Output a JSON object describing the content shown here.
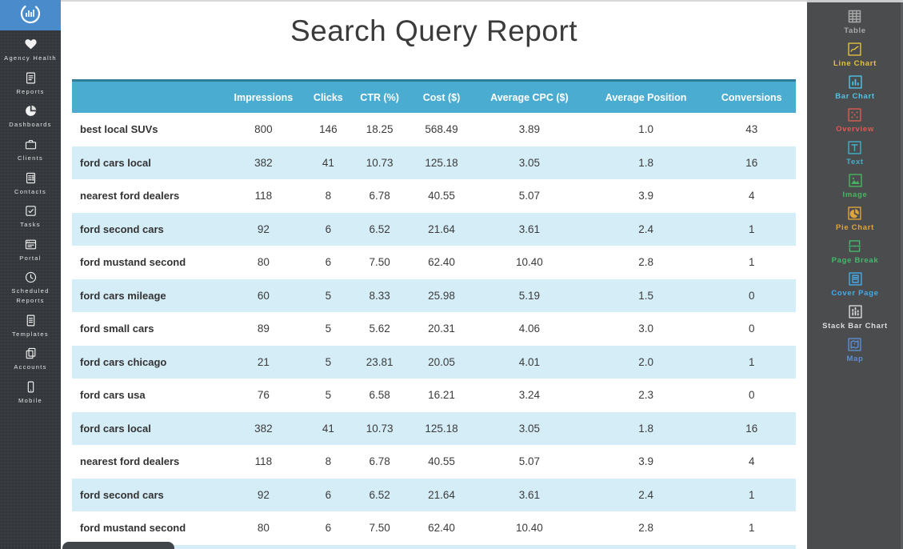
{
  "colors": {
    "header_bg": "#4AACD0",
    "header_border": "#2E8099",
    "row_alt_bg": "#D5EDF7",
    "logo_bg": "#4A8CCB",
    "left_sidebar_bg": "#34383C",
    "right_sidebar_bg": "#4A4C4E"
  },
  "left_sidebar": {
    "items": [
      {
        "icon": "heart-icon",
        "label": "Agency Health"
      },
      {
        "icon": "reports-icon",
        "label": "Reports"
      },
      {
        "icon": "dashboards-icon",
        "label": "Dashboards"
      },
      {
        "icon": "clients-icon",
        "label": "Clients"
      },
      {
        "icon": "contacts-icon",
        "label": "Contacts"
      },
      {
        "icon": "tasks-icon",
        "label": "Tasks"
      },
      {
        "icon": "portal-icon",
        "label": "Portal"
      },
      {
        "icon": "clock-icon",
        "label": "Scheduled Reports"
      },
      {
        "icon": "templates-icon",
        "label": "Templates"
      },
      {
        "icon": "accounts-icon",
        "label": "Accounts"
      },
      {
        "icon": "mobile-icon",
        "label": "Mobile"
      }
    ]
  },
  "right_sidebar": {
    "items": [
      {
        "icon": "table-icon",
        "label": "Table",
        "color": "#ABABAB"
      },
      {
        "icon": "line-chart-icon",
        "label": "Line Chart",
        "color": "#E3C33C"
      },
      {
        "icon": "bar-chart-icon",
        "label": "Bar Chart",
        "color": "#4FC4EA"
      },
      {
        "icon": "overview-icon",
        "label": "Overview",
        "color": "#E25A50"
      },
      {
        "icon": "text-icon",
        "label": "Text",
        "color": "#41B3C9"
      },
      {
        "icon": "image-icon",
        "label": "Image",
        "color": "#47B75F"
      },
      {
        "icon": "pie-chart-icon",
        "label": "Pie Chart",
        "color": "#DFA53C"
      },
      {
        "icon": "page-break-icon",
        "label": "Page Break",
        "color": "#43BA6C"
      },
      {
        "icon": "cover-page-icon",
        "label": "Cover Page",
        "color": "#44ACEA"
      },
      {
        "icon": "stack-bar-chart-icon",
        "label": "Stack Bar Chart",
        "color": "#DCDCDC"
      },
      {
        "icon": "map-icon",
        "label": "Map",
        "color": "#5C8FD6"
      }
    ]
  },
  "report": {
    "title": "Search Query Report",
    "table": {
      "columns": [
        "",
        "Impressions",
        "Clicks",
        "CTR (%)",
        "Cost ($)",
        "Average CPC ($)",
        "Average Position",
        "Conversions"
      ],
      "rows": [
        [
          "best local SUVs",
          "800",
          "146",
          "18.25",
          "568.49",
          "3.89",
          "1.0",
          "43"
        ],
        [
          "ford cars local",
          "382",
          "41",
          "10.73",
          "125.18",
          "3.05",
          "1.8",
          "16"
        ],
        [
          "nearest ford dealers",
          "118",
          "8",
          "6.78",
          "40.55",
          "5.07",
          "3.9",
          "4"
        ],
        [
          "ford second cars",
          "92",
          "6",
          "6.52",
          "21.64",
          "3.61",
          "2.4",
          "1"
        ],
        [
          "ford mustand second",
          "80",
          "6",
          "7.50",
          "62.40",
          "10.40",
          "2.8",
          "1"
        ],
        [
          "ford cars mileage",
          "60",
          "5",
          "8.33",
          "25.98",
          "5.19",
          "1.5",
          "0"
        ],
        [
          "ford small cars",
          "89",
          "5",
          "5.62",
          "20.31",
          "4.06",
          "3.0",
          "0"
        ],
        [
          "ford cars chicago",
          "21",
          "5",
          "23.81",
          "20.05",
          "4.01",
          "2.0",
          "1"
        ],
        [
          "ford cars usa",
          "76",
          "5",
          "6.58",
          "16.21",
          "3.24",
          "2.3",
          "0"
        ],
        [
          "ford cars local",
          "382",
          "41",
          "10.73",
          "125.18",
          "3.05",
          "1.8",
          "16"
        ],
        [
          "nearest ford dealers",
          "118",
          "8",
          "6.78",
          "40.55",
          "5.07",
          "3.9",
          "4"
        ],
        [
          "ford second cars",
          "92",
          "6",
          "6.52",
          "21.64",
          "3.61",
          "2.4",
          "1"
        ],
        [
          "ford mustand second",
          "80",
          "6",
          "7.50",
          "62.40",
          "10.40",
          "2.8",
          "1"
        ]
      ]
    }
  }
}
